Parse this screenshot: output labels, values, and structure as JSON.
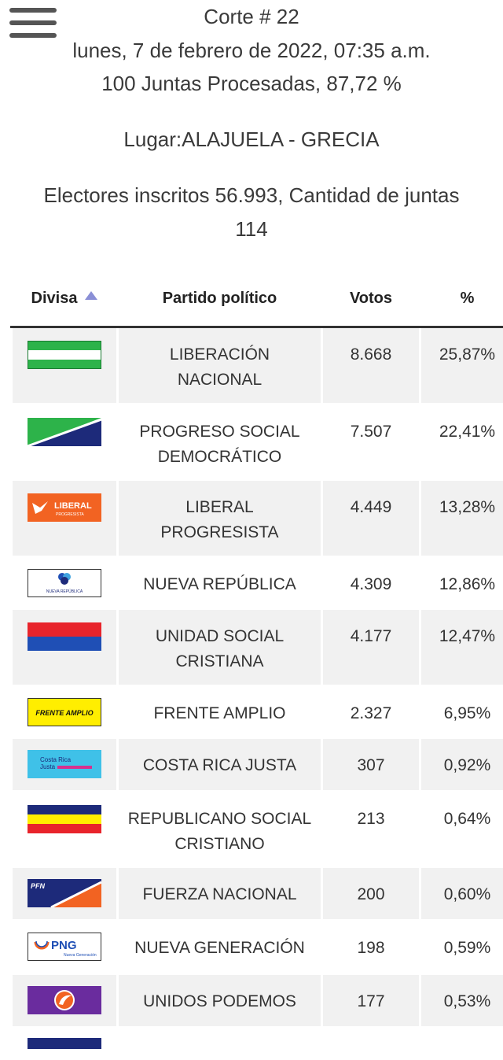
{
  "header": {
    "corte": "Corte # 22",
    "fecha": "lunes, 7 de febrero de 2022, 07:35 a.m.",
    "juntas": "100 Juntas Procesadas, 87,72 %",
    "lugar": "Lugar:ALAJUELA - GRECIA",
    "electores_line1": "Electores inscritos 56.993, Cantidad de juntas",
    "electores_line2": "114"
  },
  "table": {
    "headers": {
      "divisa": "Divisa",
      "partido": "Partido político",
      "votos": "Votos",
      "porcentaje": "%"
    },
    "rows": [
      {
        "partido_l1": "LIBERACIÓN",
        "partido_l2": "NACIONAL",
        "votos": "8.668",
        "pct": "25,87%",
        "flag": "liberacion-nacional-flag"
      },
      {
        "partido_l1": "PROGRESO SOCIAL",
        "partido_l2": "DEMOCRÁTICO",
        "votos": "7.507",
        "pct": "22,41%",
        "flag": "progreso-social-democratico-flag"
      },
      {
        "partido_l1": "LIBERAL",
        "partido_l2": "PROGRESISTA",
        "votos": "4.449",
        "pct": "13,28%",
        "flag": "liberal-progresista-flag",
        "flag_text": "LIBERAL",
        "flag_subtext": "PROGRESISTA"
      },
      {
        "partido_l1": "NUEVA REPÚBLICA",
        "partido_l2": "",
        "votos": "4.309",
        "pct": "12,86%",
        "flag": "nueva-republica-flag",
        "flag_text": "NUEVA REPÚBLICA"
      },
      {
        "partido_l1": "UNIDAD SOCIAL",
        "partido_l2": "CRISTIANA",
        "votos": "4.177",
        "pct": "12,47%",
        "flag": "unidad-social-cristiana-flag"
      },
      {
        "partido_l1": "FRENTE AMPLIO",
        "partido_l2": "",
        "votos": "2.327",
        "pct": "6,95%",
        "flag": "frente-amplio-flag",
        "flag_text": "FRENTE AMPLIO"
      },
      {
        "partido_l1": "COSTA RICA JUSTA",
        "partido_l2": "",
        "votos": "307",
        "pct": "0,92%",
        "flag": "costa-rica-justa-flag",
        "flag_text": "Costa Rica",
        "flag_subtext": "Justa"
      },
      {
        "partido_l1": "REPUBLICANO SOCIAL",
        "partido_l2": "CRISTIANO",
        "votos": "213",
        "pct": "0,64%",
        "flag": "republicano-social-cristiano-flag"
      },
      {
        "partido_l1": "FUERZA NACIONAL",
        "partido_l2": "",
        "votos": "200",
        "pct": "0,60%",
        "flag": "fuerza-nacional-flag",
        "flag_text": "PFN"
      },
      {
        "partido_l1": "NUEVA GENERACIÓN",
        "partido_l2": "",
        "votos": "198",
        "pct": "0,59%",
        "flag": "nueva-generacion-flag",
        "flag_text": "PNG",
        "flag_subtext": "Nueva Generación"
      },
      {
        "partido_l1": "UNIDOS PODEMOS",
        "partido_l2": "",
        "votos": "177",
        "pct": "0,53%",
        "flag": "unidos-podemos-flag"
      }
    ]
  },
  "colors": {
    "green": "#2db34a",
    "navy": "#1d2a7a",
    "orange": "#f26322",
    "red": "#e8242b",
    "blue": "#1f4fb5",
    "yellow": "#ffee00",
    "cyan": "#3fc1e8",
    "magenta": "#d6308f",
    "purple": "#6a2c9e",
    "sort_arrow": "#8a8fd6"
  }
}
